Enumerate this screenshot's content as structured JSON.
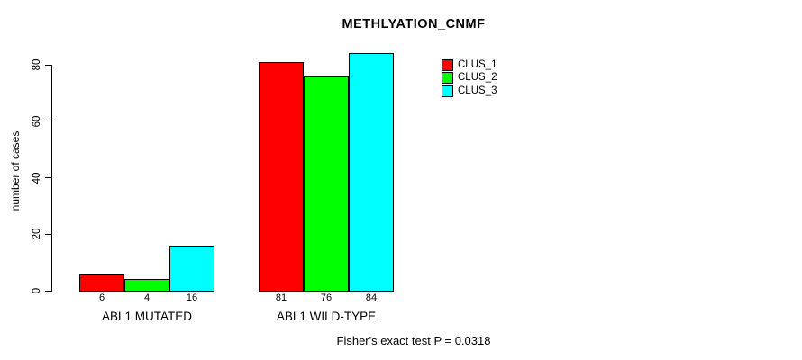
{
  "title": "METHLYATION_CNMF",
  "chart_data": {
    "type": "bar",
    "title": "METHLYATION_CNMF",
    "ylabel": "number of cases",
    "xlabel": "",
    "categories": [
      "ABL1 MUTATED",
      "ABL1 WILD-TYPE"
    ],
    "series": [
      {
        "name": "CLUS_1",
        "color": "#ff0000",
        "values": [
          6,
          81
        ]
      },
      {
        "name": "CLUS_2",
        "color": "#00ff00",
        "values": [
          4,
          76
        ]
      },
      {
        "name": "CLUS_3",
        "color": "#00ffff",
        "values": [
          16,
          84
        ]
      }
    ],
    "yticks": [
      "0",
      "20",
      "40",
      "60",
      "80"
    ],
    "ylim": [
      0,
      80
    ],
    "grid": false,
    "bar_border_color": "#000000",
    "legend_position": "top-right",
    "annotation": "Fisher's exact test P = 0.0318"
  }
}
